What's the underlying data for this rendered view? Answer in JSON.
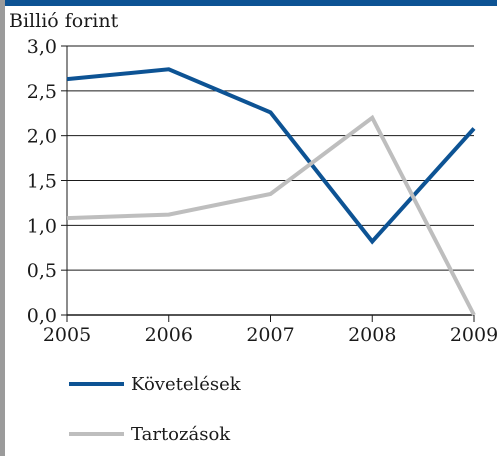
{
  "chart_data": {
    "type": "line",
    "ylabel": "Billió forint",
    "x": [
      "2005",
      "2006",
      "2007",
      "2008",
      "2009"
    ],
    "y_ticks": [
      "0,0",
      "0,5",
      "1,0",
      "1,5",
      "2,0",
      "2,5",
      "3,0"
    ],
    "ylim": [
      0,
      3
    ],
    "grid": true,
    "legend_position": "bottom",
    "series": [
      {
        "name": "Követelések",
        "values": [
          2.63,
          2.74,
          2.26,
          0.82,
          2.08
        ],
        "color": "#0d5394"
      },
      {
        "name": "Tartozások",
        "values": [
          1.08,
          1.12,
          1.35,
          2.2,
          0.0
        ],
        "color": "#bebebe"
      }
    ]
  },
  "colors": {
    "top_band": "#0d5394",
    "left_border": "#9b9b9b",
    "axis": "#1a1a1a"
  }
}
